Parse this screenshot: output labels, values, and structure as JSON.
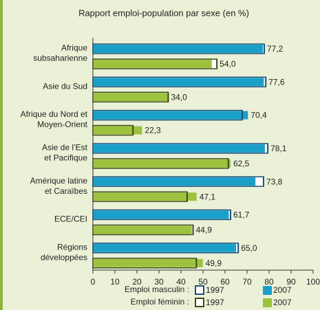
{
  "chart_data": {
    "type": "overlap-hbar",
    "title": "Rapport emploi-population par sexe (en %)",
    "categories": [
      [
        "Afrique",
        "subsaharienne"
      ],
      [
        "Asie du Sud"
      ],
      [
        "Afrique du Nord et",
        "Moyen-Orient"
      ],
      [
        "Asie de l’Est",
        "et Pacifique"
      ],
      [
        "Amérique latine",
        "et Caraïbes"
      ],
      [
        "ECE/CEI"
      ],
      [
        "Régions",
        "développées"
      ]
    ],
    "groups": [
      {
        "name": "Emploi masculin :",
        "series": [
          {
            "name": "1997",
            "style": "outline",
            "color": "#1d4f7a",
            "values": [
              77.8,
              78.5,
              67.8,
              79.4,
              77.5,
              62.5,
              66.0
            ]
          },
          {
            "name": "2007",
            "style": "fill",
            "color": "#1aa0c8",
            "values": [
              77.2,
              77.6,
              70.4,
              78.1,
              73.8,
              61.7,
              65.0
            ],
            "value_labels": [
              "77,2",
              "77,6",
              "70,4",
              "78,1",
              "73,8",
              "61,7",
              "65,0"
            ]
          }
        ]
      },
      {
        "name": "Emploi féminin :",
        "series": [
          {
            "name": "1997",
            "style": "outline",
            "color": "#3e4a1a",
            "values": [
              56.3,
              34.2,
              18.2,
              61.5,
              42.8,
              45.5,
              47.0
            ]
          },
          {
            "name": "2007",
            "style": "fill",
            "color": "#9dc23e",
            "values": [
              54.0,
              34.0,
              22.3,
              62.5,
              47.1,
              44.9,
              49.9
            ],
            "value_labels": [
              "54,0",
              "34,0",
              "22,3",
              "62,5",
              "47,1",
              "44,9",
              "49,9"
            ]
          }
        ]
      }
    ],
    "xlim": [
      0,
      100
    ],
    "xticks": [
      0,
      10,
      20,
      30,
      40,
      50,
      60,
      70,
      80,
      90,
      100
    ]
  }
}
